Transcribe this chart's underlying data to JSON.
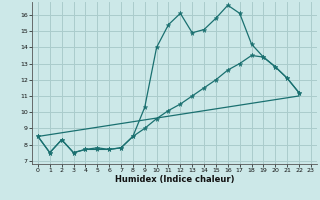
{
  "title": "",
  "xlabel": "Humidex (Indice chaleur)",
  "bg_color": "#cce8e8",
  "grid_color": "#aacccc",
  "line_color": "#1a7070",
  "xmin": -0.5,
  "xmax": 23.5,
  "ymin": 6.8,
  "ymax": 16.8,
  "yticks": [
    7,
    8,
    9,
    10,
    11,
    12,
    13,
    14,
    15,
    16
  ],
  "xticks": [
    0,
    1,
    2,
    3,
    4,
    5,
    6,
    7,
    8,
    9,
    10,
    11,
    12,
    13,
    14,
    15,
    16,
    17,
    18,
    19,
    20,
    21,
    22,
    23
  ],
  "line1_x": [
    0,
    1,
    2,
    3,
    4,
    5,
    6,
    7,
    8,
    9,
    10,
    11,
    12,
    13,
    14,
    15,
    16,
    17,
    18,
    19,
    20,
    21,
    22
  ],
  "line1_y": [
    8.5,
    7.5,
    8.3,
    7.5,
    7.7,
    7.8,
    7.7,
    7.8,
    8.5,
    10.3,
    14.0,
    15.4,
    16.1,
    14.9,
    15.1,
    15.8,
    16.6,
    16.1,
    14.2,
    13.4,
    12.8,
    12.1,
    11.2
  ],
  "line2_x": [
    0,
    1,
    2,
    3,
    4,
    5,
    6,
    7,
    8,
    9,
    10,
    11,
    12,
    13,
    14,
    15,
    16,
    17,
    18,
    19,
    20,
    21,
    22
  ],
  "line2_y": [
    8.5,
    7.5,
    8.3,
    7.5,
    7.7,
    7.7,
    7.7,
    7.8,
    8.5,
    9.0,
    9.6,
    10.1,
    10.5,
    11.0,
    11.5,
    12.0,
    12.6,
    13.0,
    13.5,
    13.4,
    12.8,
    12.1,
    11.2
  ],
  "line3_x": [
    0,
    22
  ],
  "line3_y": [
    8.5,
    11.0
  ]
}
